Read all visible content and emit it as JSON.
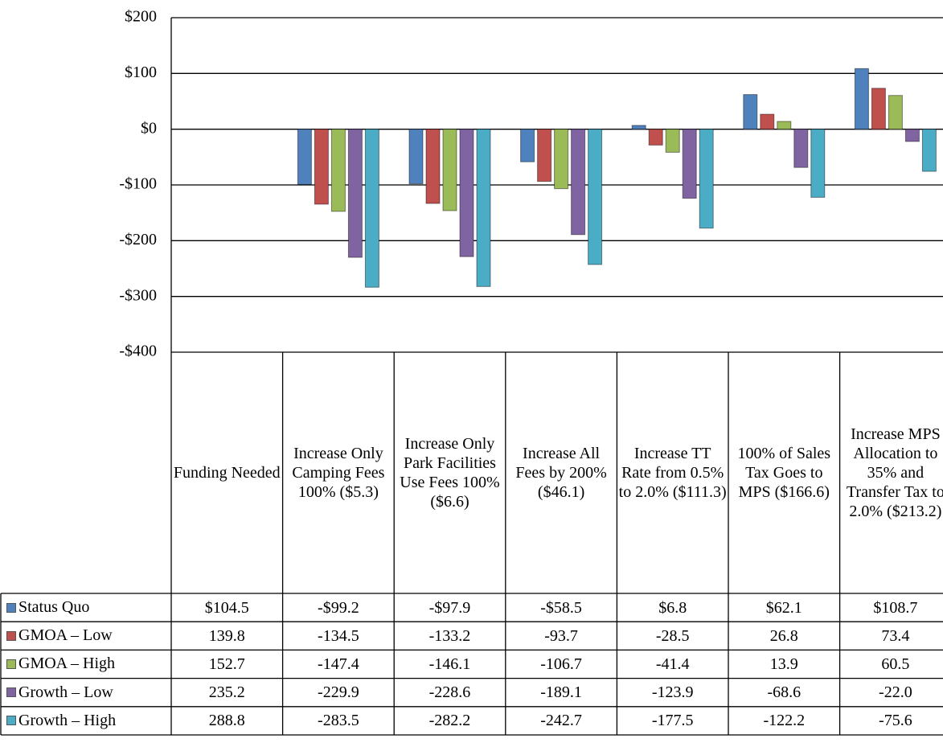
{
  "chart_data": {
    "type": "bar",
    "categories": [
      "Funding Needed",
      "Increase Only Camping Fees 100% ($5.3)",
      "Increase Only Park Facilities Use Fees 100% ($6.6)",
      "Increase All Fees by 200% ($46.1)",
      "Increase TT Rate from 0.5% to 2.0% ($111.3)",
      "100% of Sales Tax Goes to MPS ($166.6)",
      "Increase MPS Allocation to 35% and Transfer Tax to 2.0% ($213.2)"
    ],
    "series": [
      {
        "name": "Status Quo",
        "color": "#4f81bd",
        "values": [
          104.5,
          -99.2,
          -97.9,
          -58.5,
          6.8,
          62.1,
          108.7
        ],
        "value_labels": [
          "$104.5",
          "-$99.2",
          "-$97.9",
          "-$58.5",
          "$6.8",
          "$62.1",
          "$108.7"
        ]
      },
      {
        "name": "GMOA – Low",
        "color": "#c0504d",
        "values": [
          139.8,
          -134.5,
          -133.2,
          -93.7,
          -28.5,
          26.8,
          73.4
        ],
        "value_labels": [
          "139.8",
          "-134.5",
          "-133.2",
          "-93.7",
          "-28.5",
          "26.8",
          "73.4"
        ]
      },
      {
        "name": "GMOA – High",
        "color": "#9bbb59",
        "values": [
          152.7,
          -147.4,
          -146.1,
          -106.7,
          -41.4,
          13.9,
          60.5
        ],
        "value_labels": [
          "152.7",
          "-147.4",
          "-146.1",
          "-106.7",
          "-41.4",
          "13.9",
          "60.5"
        ]
      },
      {
        "name": "Growth – Low",
        "color": "#8064a2",
        "values": [
          235.2,
          -229.9,
          -228.6,
          -189.1,
          -123.9,
          -68.6,
          -22.0
        ],
        "value_labels": [
          "235.2",
          "-229.9",
          "-228.6",
          "-189.1",
          "-123.9",
          "-68.6",
          "-22.0"
        ]
      },
      {
        "name": "Growth – High",
        "color": "#4bacc6",
        "values": [
          288.8,
          -283.5,
          -282.2,
          -242.7,
          -177.5,
          -122.2,
          -75.6
        ],
        "value_labels": [
          "288.8",
          "-283.5",
          "-282.2",
          "-242.7",
          "-177.5",
          "-122.2",
          "-75.6"
        ]
      }
    ],
    "ylim": [
      -400,
      200
    ],
    "yticks": [
      {
        "value": 200,
        "label": "$200"
      },
      {
        "value": 100,
        "label": "$100"
      },
      {
        "value": 0,
        "label": "$0"
      },
      {
        "value": -100,
        "label": "-$100"
      },
      {
        "value": -200,
        "label": "-$200"
      },
      {
        "value": -300,
        "label": "-$300"
      },
      {
        "value": -400,
        "label": "-$400"
      }
    ],
    "grid": true
  }
}
